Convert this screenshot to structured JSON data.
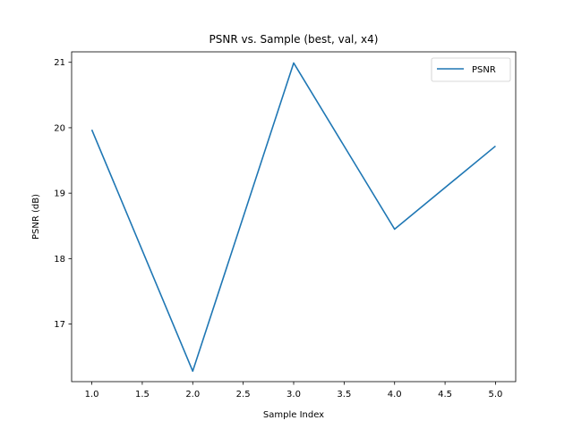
{
  "chart_data": {
    "type": "line",
    "title": "PSNR vs. Sample (best, val, x4)",
    "xlabel": "Sample Index",
    "ylabel": "PSNR (dB)",
    "xlim": [
      0.8,
      5.2
    ],
    "ylim": [
      16.12,
      21.16
    ],
    "xticks": [
      1.0,
      1.5,
      2.0,
      2.5,
      3.0,
      3.5,
      4.0,
      4.5,
      5.0
    ],
    "xtick_labels": [
      "1.0",
      "1.5",
      "2.0",
      "2.5",
      "3.0",
      "3.5",
      "4.0",
      "4.5",
      "5.0"
    ],
    "yticks": [
      17,
      18,
      19,
      20,
      21
    ],
    "ytick_labels": [
      "17",
      "18",
      "19",
      "20",
      "21"
    ],
    "grid": false,
    "legend_position": "top-right",
    "series": [
      {
        "name": "PSNR",
        "color": "#1f77b4",
        "x": [
          1,
          2,
          3,
          4,
          5
        ],
        "y": [
          19.97,
          16.28,
          20.99,
          18.45,
          19.72
        ]
      }
    ]
  }
}
